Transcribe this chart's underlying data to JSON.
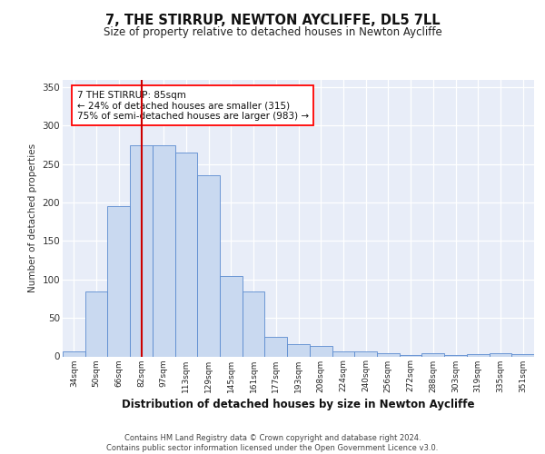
{
  "title1": "7, THE STIRRUP, NEWTON AYCLIFFE, DL5 7LL",
  "title2": "Size of property relative to detached houses in Newton Aycliffe",
  "xlabel": "Distribution of detached houses by size in Newton Aycliffe",
  "ylabel": "Number of detached properties",
  "categories": [
    "34sqm",
    "50sqm",
    "66sqm",
    "82sqm",
    "97sqm",
    "113sqm",
    "129sqm",
    "145sqm",
    "161sqm",
    "177sqm",
    "193sqm",
    "208sqm",
    "224sqm",
    "240sqm",
    "256sqm",
    "272sqm",
    "288sqm",
    "303sqm",
    "319sqm",
    "335sqm",
    "351sqm"
  ],
  "bar_heights": [
    6,
    84,
    195,
    275,
    275,
    265,
    235,
    104,
    84,
    25,
    16,
    13,
    7,
    6,
    4,
    2,
    4,
    2,
    3,
    4,
    3
  ],
  "bar_color": "#c9d9f0",
  "bar_edge_color": "#5b8bd0",
  "vline_color": "#cc0000",
  "vline_bin_index": 3,
  "ylim": [
    0,
    360
  ],
  "yticks": [
    0,
    50,
    100,
    150,
    200,
    250,
    300,
    350
  ],
  "annotation_text": "7 THE STIRRUP: 85sqm\n← 24% of detached houses are smaller (315)\n75% of semi-detached houses are larger (983) →",
  "footer": "Contains HM Land Registry data © Crown copyright and database right 2024.\nContains public sector information licensed under the Open Government Licence v3.0.",
  "bg_color": "#e8edf8",
  "grid_color": "#d0d8e8"
}
